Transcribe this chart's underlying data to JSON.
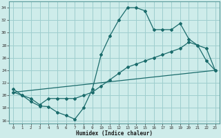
{
  "xlabel": "Humidex (Indice chaleur)",
  "bg_color": "#ceecea",
  "grid_color": "#9ecece",
  "line_color": "#1a6b6b",
  "xlim": [
    -0.5,
    23.5
  ],
  "ylim": [
    15.5,
    35.0
  ],
  "xticks": [
    0,
    1,
    2,
    3,
    4,
    5,
    6,
    7,
    8,
    9,
    10,
    11,
    12,
    13,
    14,
    15,
    16,
    17,
    18,
    19,
    20,
    21,
    22,
    23
  ],
  "yticks": [
    16,
    18,
    20,
    22,
    24,
    26,
    28,
    30,
    32,
    34
  ],
  "line1_x": [
    0,
    1,
    2,
    3,
    4,
    5,
    6,
    7,
    8,
    9,
    10,
    11,
    12,
    13,
    14,
    15,
    16,
    17,
    18,
    19,
    20,
    21,
    22,
    23
  ],
  "line1_y": [
    21,
    20,
    19,
    18.3,
    18.2,
    17.3,
    16.8,
    16.2,
    18,
    21,
    26.5,
    29.5,
    32,
    34,
    34,
    33.5,
    30.5,
    30.5,
    30.5,
    31.5,
    29,
    28,
    25.5,
    24
  ],
  "line2_x": [
    0,
    1,
    2,
    3,
    4,
    5,
    6,
    7,
    8,
    9,
    10,
    11,
    12,
    13,
    14,
    15,
    16,
    17,
    18,
    19,
    20,
    21,
    22,
    23
  ],
  "line2_y": [
    20.5,
    20,
    19.5,
    18.5,
    19.5,
    19.5,
    19.5,
    19.5,
    20,
    20.5,
    21.5,
    22.5,
    23.5,
    24.5,
    25,
    25.5,
    26,
    26.5,
    27,
    27.5,
    28.5,
    28,
    27.5,
    24
  ],
  "line3_x": [
    0,
    23
  ],
  "line3_y": [
    20.5,
    24
  ]
}
